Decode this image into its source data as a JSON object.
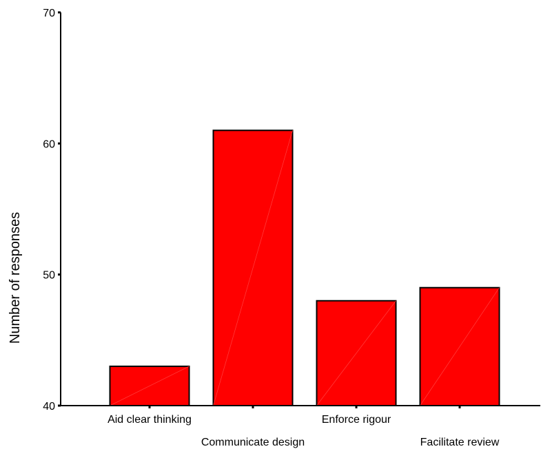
{
  "chart_data": {
    "type": "bar",
    "categories": [
      "Aid clear thinking",
      "Communicate design",
      "Enforce rigour",
      "Facilitate review"
    ],
    "values": [
      43,
      61,
      48,
      49
    ],
    "title": "",
    "xlabel": "",
    "ylabel": "Number of responses",
    "ylim": [
      40,
      70
    ],
    "yticks": [
      "40",
      "50",
      "60",
      "70"
    ],
    "grid": false,
    "legend": "none",
    "bar_color": "#ff0000",
    "edge_color": "#000000"
  }
}
